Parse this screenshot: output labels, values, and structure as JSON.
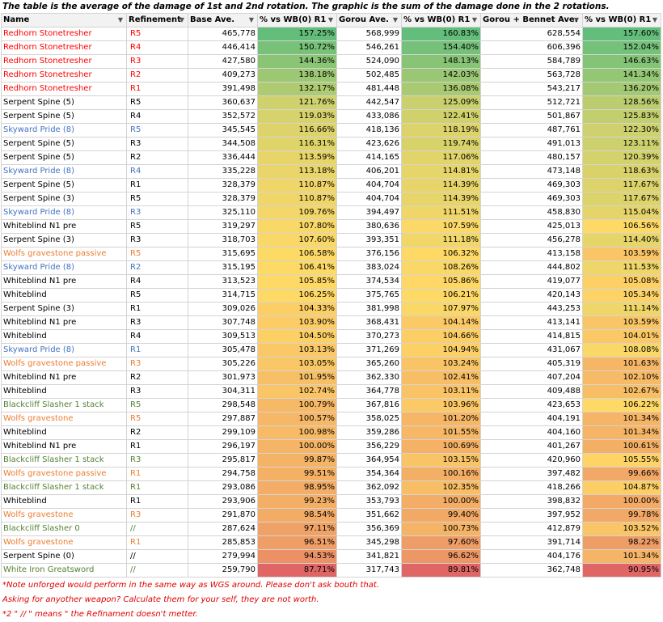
{
  "caption": "The table is the average of the damage of 1st and 2nd rotation. The graphic is the sum of the damage done in the 2 rotations.",
  "headers": [
    "Name",
    "Refinement",
    "Base Ave.",
    "% vs WB(0) R1",
    "Gorou Ave.",
    "% vs WB(0) R1",
    "Gorou + Bennet Ave.",
    "% vs WB(0) R1"
  ],
  "colors": {
    "red": "#ff0000",
    "blue": "#4472c4",
    "orange": "#ed7d31",
    "green": "#548235",
    "black": "#000000",
    "scale_low": "#e06666",
    "scale_mid": "#ffd966",
    "scale_high": "#63be7b"
  },
  "rows": [
    {
      "name": "Redhorn Stonetresher",
      "ref": "R5",
      "base": "465,778",
      "p1": "157.25%",
      "gorou": "568,999",
      "p2": "160.83%",
      "gb": "628,554",
      "p3": "157.60%",
      "c": "red"
    },
    {
      "name": "Redhorn Stonetresher",
      "ref": "R4",
      "base": "446,414",
      "p1": "150.72%",
      "gorou": "546,261",
      "p2": "154.40%",
      "gb": "606,396",
      "p3": "152.04%",
      "c": "red"
    },
    {
      "name": "Redhorn Stonetresher",
      "ref": "R3",
      "base": "427,580",
      "p1": "144.36%",
      "gorou": "524,090",
      "p2": "148.13%",
      "gb": "584,789",
      "p3": "146.63%",
      "c": "red"
    },
    {
      "name": "Redhorn Stonetresher",
      "ref": "R2",
      "base": "409,273",
      "p1": "138.18%",
      "gorou": "502,485",
      "p2": "142.03%",
      "gb": "563,728",
      "p3": "141.34%",
      "c": "red"
    },
    {
      "name": "Redhorn Stonetresher",
      "ref": "R1",
      "base": "391,498",
      "p1": "132.17%",
      "gorou": "481,448",
      "p2": "136.08%",
      "gb": "543,217",
      "p3": "136.20%",
      "c": "red"
    },
    {
      "name": "Serpent Spine (5)",
      "ref": "R5",
      "base": "360,637",
      "p1": "121.76%",
      "gorou": "442,547",
      "p2": "125.09%",
      "gb": "512,721",
      "p3": "128.56%",
      "c": "black"
    },
    {
      "name": "Serpent Spine (5)",
      "ref": "R4",
      "base": "352,572",
      "p1": "119.03%",
      "gorou": "433,086",
      "p2": "122.41%",
      "gb": "501,867",
      "p3": "125.83%",
      "c": "black"
    },
    {
      "name": "Skyward Pride (8)",
      "ref": "R5",
      "base": "345,545",
      "p1": "116.66%",
      "gorou": "418,136",
      "p2": "118.19%",
      "gb": "487,761",
      "p3": "122.30%",
      "c": "blue"
    },
    {
      "name": "Serpent Spine (5)",
      "ref": "R3",
      "base": "344,508",
      "p1": "116.31%",
      "gorou": "423,626",
      "p2": "119.74%",
      "gb": "491,013",
      "p3": "123.11%",
      "c": "black"
    },
    {
      "name": "Serpent Spine (5)",
      "ref": "R2",
      "base": "336,444",
      "p1": "113.59%",
      "gorou": "414,165",
      "p2": "117.06%",
      "gb": "480,157",
      "p3": "120.39%",
      "c": "black"
    },
    {
      "name": "Skyward Pride (8)",
      "ref": "R4",
      "base": "335,228",
      "p1": "113.18%",
      "gorou": "406,201",
      "p2": "114.81%",
      "gb": "473,148",
      "p3": "118.63%",
      "c": "blue"
    },
    {
      "name": "Serpent Spine (5)",
      "ref": "R1",
      "base": "328,379",
      "p1": "110.87%",
      "gorou": "404,704",
      "p2": "114.39%",
      "gb": "469,303",
      "p3": "117.67%",
      "c": "black"
    },
    {
      "name": "Serpent Spine (3)",
      "ref": "R5",
      "base": "328,379",
      "p1": "110.87%",
      "gorou": "404,704",
      "p2": "114.39%",
      "gb": "469,303",
      "p3": "117.67%",
      "c": "black"
    },
    {
      "name": "Skyward Pride (8)",
      "ref": "R3",
      "base": "325,110",
      "p1": "109.76%",
      "gorou": "394,497",
      "p2": "111.51%",
      "gb": "458,830",
      "p3": "115.04%",
      "c": "blue"
    },
    {
      "name": "Whiteblind N1 pre",
      "ref": "R5",
      "base": "319,297",
      "p1": "107.80%",
      "gorou": "380,636",
      "p2": "107.59%",
      "gb": "425,013",
      "p3": "106.56%",
      "c": "black"
    },
    {
      "name": "Serpent Spine (3)",
      "ref": "R3",
      "base": "318,703",
      "p1": "107.60%",
      "gorou": "393,351",
      "p2": "111.18%",
      "gb": "456,278",
      "p3": "114.40%",
      "c": "black"
    },
    {
      "name": "Wolfs gravestone passive",
      "ref": "R5",
      "base": "315,695",
      "p1": "106.58%",
      "gorou": "376,156",
      "p2": "106.32%",
      "gb": "413,158",
      "p3": "103.59%",
      "c": "orange"
    },
    {
      "name": "Skyward Pride (8)",
      "ref": "R2",
      "base": "315,195",
      "p1": "106.41%",
      "gorou": "383,024",
      "p2": "108.26%",
      "gb": "444,802",
      "p3": "111.53%",
      "c": "blue"
    },
    {
      "name": "Whiteblind N1 pre",
      "ref": "R4",
      "base": "313,523",
      "p1": "105.85%",
      "gorou": "374,534",
      "p2": "105.86%",
      "gb": "419,077",
      "p3": "105.08%",
      "c": "black"
    },
    {
      "name": "Whiteblind",
      "ref": "R5",
      "base": "314,715",
      "p1": "106.25%",
      "gorou": "375,765",
      "p2": "106.21%",
      "gb": "420,143",
      "p3": "105.34%",
      "c": "black"
    },
    {
      "name": "Serpent Spine (3)",
      "ref": "R1",
      "base": "309,026",
      "p1": "104.33%",
      "gorou": "381,998",
      "p2": "107.97%",
      "gb": "443,253",
      "p3": "111.14%",
      "c": "black"
    },
    {
      "name": "Whiteblind N1 pre",
      "ref": "R3",
      "base": "307,748",
      "p1": "103.90%",
      "gorou": "368,431",
      "p2": "104.14%",
      "gb": "413,141",
      "p3": "103.59%",
      "c": "black"
    },
    {
      "name": "Whiteblind",
      "ref": "R4",
      "base": "309,513",
      "p1": "104.50%",
      "gorou": "370,273",
      "p2": "104.66%",
      "gb": "414,815",
      "p3": "104.01%",
      "c": "black"
    },
    {
      "name": "Skyward Pride (8)",
      "ref": "R1",
      "base": "305,478",
      "p1": "103.13%",
      "gorou": "371,269",
      "p2": "104.94%",
      "gb": "431,067",
      "p3": "108.08%",
      "c": "blue"
    },
    {
      "name": "Wolfs gravestone passive",
      "ref": "R3",
      "base": "305,226",
      "p1": "103.05%",
      "gorou": "365,260",
      "p2": "103.24%",
      "gb": "405,319",
      "p3": "101.63%",
      "c": "orange"
    },
    {
      "name": "Whiteblind N1 pre",
      "ref": "R2",
      "base": "301,973",
      "p1": "101.95%",
      "gorou": "362,330",
      "p2": "102.41%",
      "gb": "407,204",
      "p3": "102.10%",
      "c": "black"
    },
    {
      "name": "Whiteblind",
      "ref": "R3",
      "base": "304,311",
      "p1": "102.74%",
      "gorou": "364,778",
      "p2": "103.11%",
      "gb": "409,488",
      "p3": "102.67%",
      "c": "black"
    },
    {
      "name": "Blackcliff Slasher 1 stack",
      "ref": "R5",
      "base": "298,548",
      "p1": "100.79%",
      "gorou": "367,816",
      "p2": "103.96%",
      "gb": "423,653",
      "p3": "106.22%",
      "c": "green"
    },
    {
      "name": "Wolfs gravestone",
      "ref": "R5",
      "base": "297,887",
      "p1": "100.57%",
      "gorou": "358,025",
      "p2": "101.20%",
      "gb": "404,191",
      "p3": "101.34%",
      "c": "orange"
    },
    {
      "name": "Whiteblind",
      "ref": "R2",
      "base": "299,109",
      "p1": "100.98%",
      "gorou": "359,286",
      "p2": "101.55%",
      "gb": "404,160",
      "p3": "101.34%",
      "c": "black"
    },
    {
      "name": "Whiteblind N1 pre",
      "ref": "R1",
      "base": "296,197",
      "p1": "100.00%",
      "gorou": "356,229",
      "p2": "100.69%",
      "gb": "401,267",
      "p3": "100.61%",
      "c": "black"
    },
    {
      "name": "Blackcliff Slasher 1 stack",
      "ref": "R3",
      "base": "295,817",
      "p1": "99.87%",
      "gorou": "364,954",
      "p2": "103.15%",
      "gb": "420,960",
      "p3": "105.55%",
      "c": "green"
    },
    {
      "name": "Wolfs gravestone passive",
      "ref": "R1",
      "base": "294,758",
      "p1": "99.51%",
      "gorou": "354,364",
      "p2": "100.16%",
      "gb": "397,482",
      "p3": "99.66%",
      "c": "orange"
    },
    {
      "name": "Blackcliff Slasher 1 stack",
      "ref": "R1",
      "base": "293,086",
      "p1": "98.95%",
      "gorou": "362,092",
      "p2": "102.35%",
      "gb": "418,266",
      "p3": "104.87%",
      "c": "green"
    },
    {
      "name": "Whiteblind",
      "ref": "R1",
      "base": "293,906",
      "p1": "99.23%",
      "gorou": "353,793",
      "p2": "100.00%",
      "gb": "398,832",
      "p3": "100.00%",
      "c": "black"
    },
    {
      "name": "Wolfs gravestone",
      "ref": "R3",
      "base": "291,870",
      "p1": "98.54%",
      "gorou": "351,662",
      "p2": "99.40%",
      "gb": "397,952",
      "p3": "99.78%",
      "c": "orange"
    },
    {
      "name": "Blackcliff Slasher 0",
      "ref": "//",
      "base": "287,624",
      "p1": "97.11%",
      "gorou": "356,369",
      "p2": "100.73%",
      "gb": "412,879",
      "p3": "103.52%",
      "c": "green"
    },
    {
      "name": "Wolfs gravestone",
      "ref": "R1",
      "base": "285,853",
      "p1": "96.51%",
      "gorou": "345,298",
      "p2": "97.60%",
      "gb": "391,714",
      "p3": "98.22%",
      "c": "orange"
    },
    {
      "name": "Serpent Spine (0)",
      "ref": "//",
      "base": "279,994",
      "p1": "94.53%",
      "gorou": "341,821",
      "p2": "96.62%",
      "gb": "404,176",
      "p3": "101.34%",
      "c": "black"
    },
    {
      "name": "White Iron Greatsword",
      "ref": "//",
      "base": "259,790",
      "p1": "87.71%",
      "gorou": "317,743",
      "p2": "89.81%",
      "gb": "362,748",
      "p3": "90.95%",
      "c": "green"
    }
  ],
  "notes": [
    "*Note unforged would perform in the same way as  WGS around. Please don't ask bouth that.",
    "Asking for anyother weapon? Calculate them for your self, they are not worth.",
    "*2 \" // \" means  \" the Refinament doesn't metter."
  ]
}
